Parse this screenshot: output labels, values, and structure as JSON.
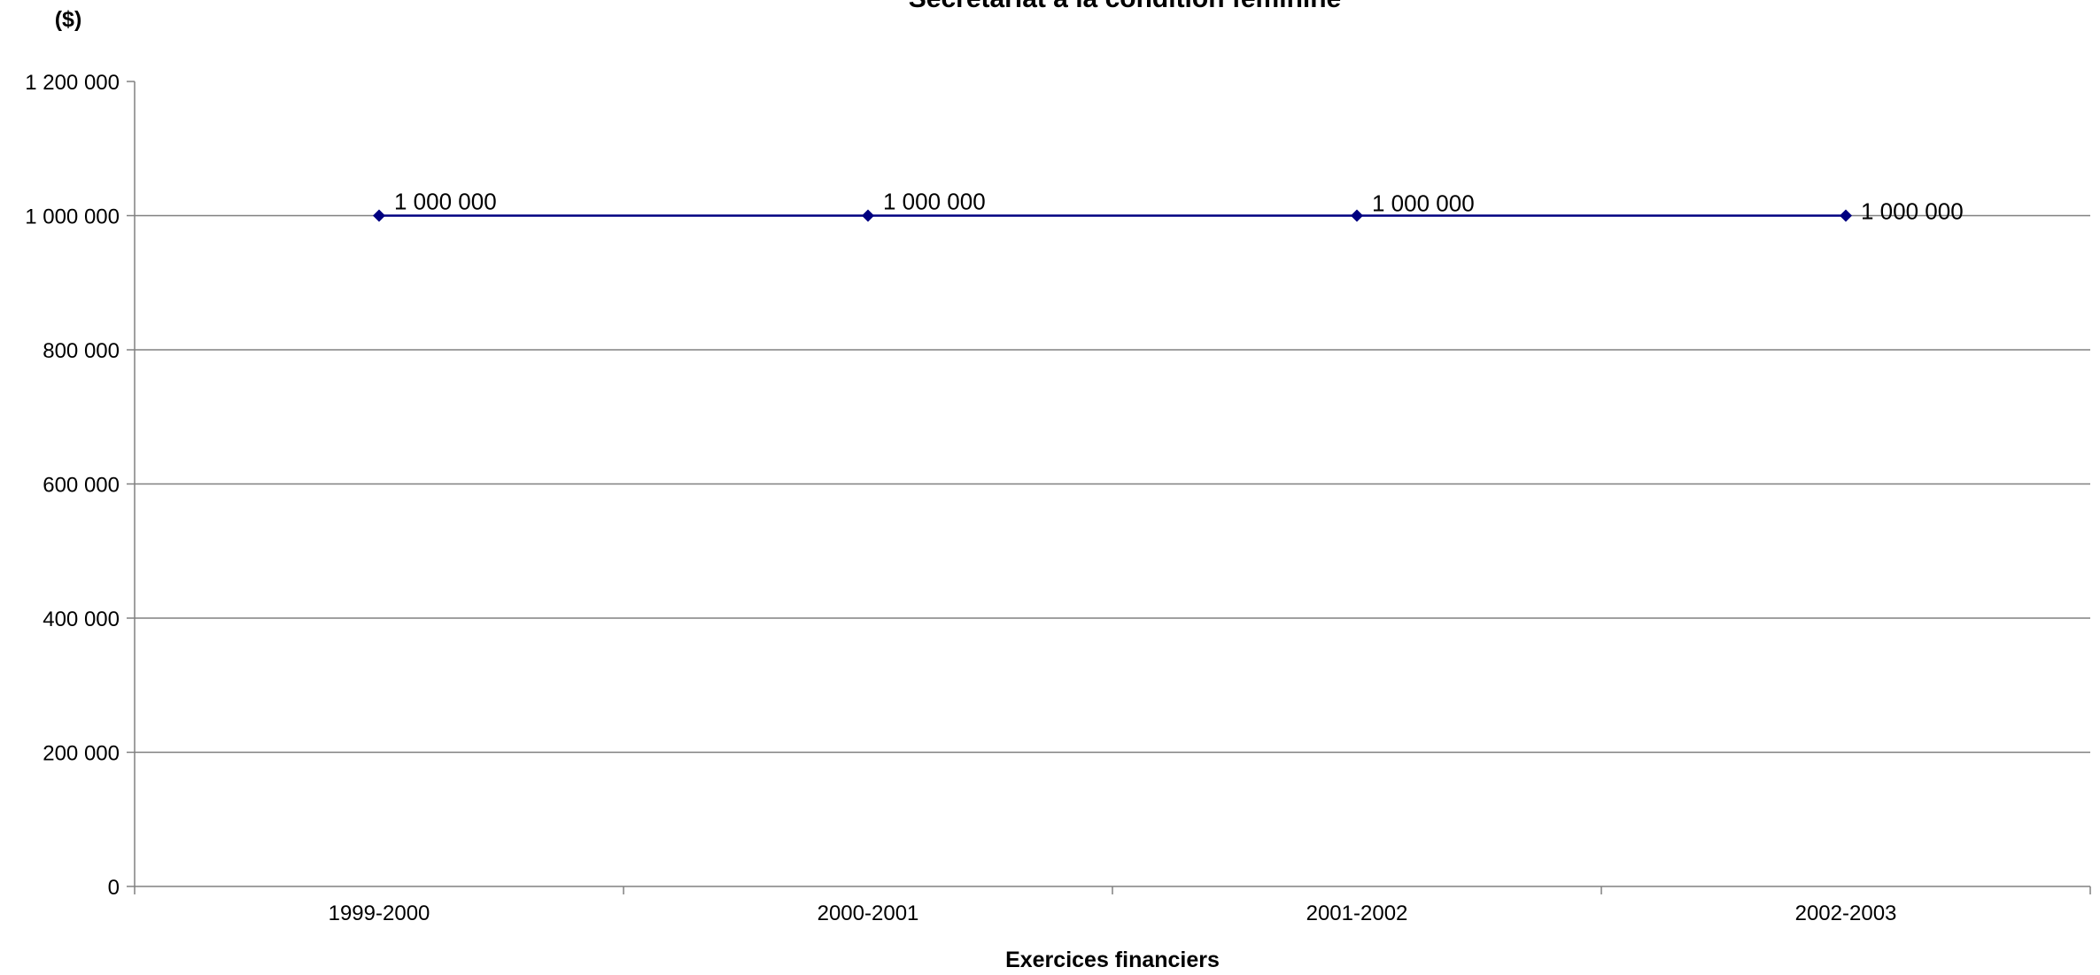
{
  "chart_data": {
    "type": "line",
    "title": "Secrétariat à la condition féminine",
    "xlabel": "Exercices financiers",
    "ylabel": "($)",
    "categories": [
      "1999-2000",
      "2000-2001",
      "2001-2002",
      "2002-2003"
    ],
    "series": [
      {
        "values": [
          1000000,
          1000000,
          1000000,
          1000000
        ],
        "data_labels": [
          "1 000 000",
          "1 000 000",
          "1 000 000",
          "1 000 000"
        ],
        "color": "#000080",
        "marker": "diamond"
      }
    ],
    "ylim": [
      0,
      1200000
    ],
    "yticks": [
      0,
      200000,
      400000,
      600000,
      800000,
      1000000,
      1200000
    ],
    "ytick_labels": [
      "0",
      "200 000",
      "400 000",
      "600 000",
      "800 000",
      "1 000 000",
      "1 200 000"
    ],
    "grid": true,
    "gridline_color": "#808080",
    "axis_color": "#808080",
    "legend": "none"
  }
}
